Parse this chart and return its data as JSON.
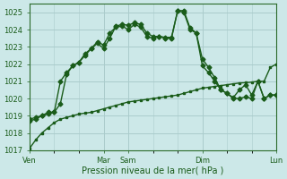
{
  "background_color": "#cce8e8",
  "grid_color": "#aacccc",
  "line_color": "#1a5c1a",
  "marker_color": "#1a5c1a",
  "xlabel": "Pression niveau de la mer( hPa )",
  "ylim": [
    1017,
    1025.5
  ],
  "yticks": [
    1017,
    1018,
    1019,
    1020,
    1021,
    1022,
    1023,
    1024,
    1025
  ],
  "x_tick_positions": [
    0,
    72,
    96,
    168,
    240
  ],
  "x_tick_labels": [
    "Ven",
    "Mar",
    "Sam",
    "Dim",
    "Lun"
  ],
  "total_hours": 240,
  "series1_x": [
    0,
    6,
    12,
    18,
    24,
    30,
    36,
    42,
    48,
    54,
    60,
    66,
    72,
    78,
    84,
    90,
    96,
    102,
    108,
    114,
    120,
    126,
    132,
    138,
    144,
    150,
    156,
    162,
    168,
    174,
    180,
    186,
    192,
    198,
    204,
    210,
    216,
    222,
    228,
    234,
    240
  ],
  "series1_y": [
    1017.1,
    1017.6,
    1018.0,
    1018.3,
    1018.6,
    1018.8,
    1018.9,
    1019.0,
    1019.1,
    1019.15,
    1019.2,
    1019.3,
    1019.4,
    1019.5,
    1019.6,
    1019.7,
    1019.8,
    1019.85,
    1019.9,
    1019.95,
    1020.0,
    1020.05,
    1020.1,
    1020.15,
    1020.2,
    1020.3,
    1020.4,
    1020.5,
    1020.6,
    1020.65,
    1020.7,
    1020.75,
    1020.8,
    1020.85,
    1020.9,
    1020.92,
    1020.95,
    1021.0,
    1021.0,
    1021.8,
    1022.0
  ],
  "series2_x": [
    0,
    6,
    12,
    18,
    24,
    30,
    36,
    42,
    48,
    54,
    60,
    66,
    72,
    78,
    84,
    90,
    96,
    102,
    108,
    114,
    120,
    126,
    132,
    138,
    144,
    150,
    156,
    162,
    168,
    174,
    180,
    186,
    192,
    198,
    204,
    210,
    216,
    222,
    228,
    234,
    240
  ],
  "series2_y": [
    1018.8,
    1018.9,
    1019.0,
    1019.2,
    1019.2,
    1019.7,
    1021.4,
    1021.9,
    1022.1,
    1022.6,
    1022.9,
    1023.2,
    1022.9,
    1023.5,
    1024.2,
    1024.3,
    1024.25,
    1024.4,
    1024.3,
    1023.8,
    1023.6,
    1023.6,
    1023.55,
    1023.55,
    1025.1,
    1025.0,
    1024.0,
    1023.8,
    1022.3,
    1021.8,
    1021.2,
    1020.5,
    1020.3,
    1020.05,
    1020.5,
    1020.8,
    1020.2,
    1021.0,
    1020.0,
    1020.2,
    1020.2
  ],
  "series3_x": [
    0,
    6,
    12,
    18,
    24,
    30,
    36,
    42,
    48,
    54,
    60,
    66,
    72,
    78,
    84,
    90,
    96,
    102,
    108,
    114,
    120,
    126,
    132,
    138,
    144,
    150,
    156,
    162,
    168,
    174,
    180,
    186,
    192,
    198,
    204,
    210,
    216,
    222,
    228,
    234,
    240
  ],
  "series3_y": [
    1018.7,
    1018.8,
    1019.0,
    1019.1,
    1019.2,
    1021.0,
    1021.5,
    1021.9,
    1022.1,
    1022.5,
    1022.9,
    1023.3,
    1023.1,
    1023.8,
    1024.15,
    1024.2,
    1024.0,
    1024.3,
    1024.15,
    1023.6,
    1023.5,
    1023.6,
    1023.5,
    1023.5,
    1025.1,
    1025.1,
    1024.1,
    1023.8,
    1021.9,
    1021.5,
    1021.0,
    1020.5,
    1020.3,
    1020.0,
    1020.0,
    1020.1,
    1020.0,
    1021.0,
    1020.0,
    1020.2,
    1020.2
  ]
}
